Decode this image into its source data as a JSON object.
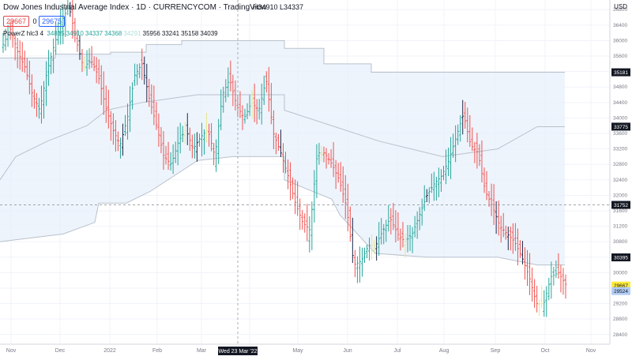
{
  "header": {
    "title": "Dow Jones Industrial Average Index · 1D · CURRENCYCOM · TradingView",
    "ohlc_text": "H34910 L34337",
    "currency": "USD"
  },
  "row2": {
    "chip1": "29667",
    "chip_sep": "0",
    "chip2": "29675"
  },
  "indicator": {
    "name": "PowerZ hlc3 4",
    "values": [
      "34815",
      "34910",
      "34337",
      "34368",
      "34291",
      "35956",
      "33241",
      "35158",
      "34039"
    ],
    "value_colors": [
      "#26a69a",
      "#26a69a",
      "#26a69a",
      "#26a69a",
      "#b2dfdb",
      "#131722",
      "#131722",
      "#131722",
      "#131722"
    ]
  },
  "crosshair": {
    "date_label": "Wed 23 Mar '22"
  },
  "price_tags": [
    {
      "value": "35181",
      "dark": true
    },
    {
      "value": "33775",
      "dark": true
    },
    {
      "value": "31752",
      "dark": true
    },
    {
      "value": "30395",
      "dark": true
    },
    {
      "value": "29667",
      "dark": false,
      "bg": "#ffeb3b"
    },
    {
      "value": "29524",
      "dark": false,
      "bg": "#b2cdf5"
    }
  ],
  "colors": {
    "bull": "#26a69a",
    "bear": "#ef5350",
    "neutral": "#e6e68f",
    "band": "#e8f0fb",
    "band_line": "#b9c1cc"
  },
  "chart_data": {
    "type": "ohlc",
    "title": "Dow Jones Industrial Average Index · 1D · CURRENCYCOM",
    "x_ticks": [
      "Nov",
      "Dec",
      "2022",
      "Feb",
      "Mar",
      "Apr",
      "May",
      "Jun",
      "Jul",
      "Aug",
      "Sep",
      "Oct",
      "Nov"
    ],
    "y_ticks": [
      28400,
      28800,
      29200,
      29600,
      30000,
      30400,
      30800,
      31200,
      31600,
      32000,
      32400,
      32800,
      33200,
      33600,
      34000,
      34400,
      34800,
      35200,
      35600,
      36000,
      36400,
      36800
    ],
    "ylim": [
      28150,
      37050
    ],
    "path_prices": [
      35900,
      36300,
      35700,
      35300,
      34600,
      34200,
      35200,
      35900,
      36500,
      36900,
      36000,
      35300,
      35500,
      35100,
      34300,
      33700,
      33300,
      34000,
      35100,
      35400,
      34500,
      33800,
      33000,
      32800,
      33400,
      33700,
      33200,
      33500,
      33700,
      33000,
      34600,
      35000,
      34300,
      34000,
      34400,
      34200,
      35000,
      33600,
      33100,
      32500,
      31800,
      31300,
      31100,
      33100,
      33100,
      32800,
      32400,
      31700,
      30200,
      30300,
      30700,
      30700,
      31100,
      31400,
      31000,
      30800,
      31000,
      31500,
      32000,
      32300,
      32500,
      32900,
      33500,
      34100,
      33300,
      33100,
      32100,
      31700,
      31200,
      31000,
      30800,
      30400,
      29900,
      29200,
      29200,
      29900,
      30000,
      29700
    ],
    "path_count_note": "",
    "band_upper": [
      [
        0,
        35550
      ],
      [
        70,
        35550
      ],
      [
        70,
        35650
      ],
      [
        140,
        35650
      ],
      [
        140,
        35700
      ],
      [
        185,
        35700
      ],
      [
        185,
        35900
      ],
      [
        230,
        35900
      ],
      [
        230,
        36000
      ],
      [
        360,
        36000
      ],
      [
        360,
        35800
      ],
      [
        410,
        35800
      ],
      [
        410,
        35400
      ],
      [
        470,
        35400
      ],
      [
        470,
        35181
      ],
      [
        715,
        35181
      ]
    ],
    "band_mid": [
      [
        0,
        32400
      ],
      [
        20,
        33000
      ],
      [
        60,
        33400
      ],
      [
        110,
        33800
      ],
      [
        135,
        34200
      ],
      [
        180,
        34400
      ],
      [
        250,
        34600
      ],
      [
        360,
        34600
      ],
      [
        360,
        34200
      ],
      [
        420,
        33800
      ],
      [
        480,
        33400
      ],
      [
        560,
        33000
      ],
      [
        630,
        33200
      ],
      [
        680,
        33775
      ],
      [
        715,
        33775
      ]
    ],
    "band_lower": [
      [
        0,
        30800
      ],
      [
        40,
        30900
      ],
      [
        80,
        31000
      ],
      [
        120,
        31300
      ],
      [
        125,
        31800
      ],
      [
        160,
        31800
      ],
      [
        190,
        32100
      ],
      [
        250,
        32900
      ],
      [
        295,
        33000
      ],
      [
        360,
        33000
      ],
      [
        360,
        32400
      ],
      [
        420,
        31900
      ],
      [
        430,
        31500
      ],
      [
        475,
        30500
      ],
      [
        540,
        30400
      ],
      [
        600,
        30400
      ],
      [
        630,
        30400
      ],
      [
        680,
        30200
      ],
      [
        715,
        30200
      ]
    ],
    "grid": true
  }
}
